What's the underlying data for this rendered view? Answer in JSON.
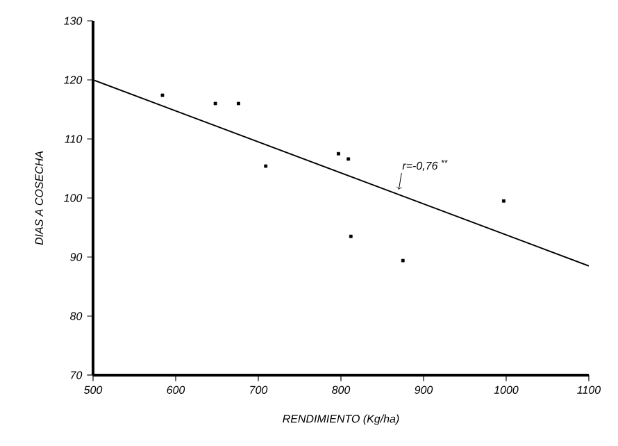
{
  "chart_data": {
    "type": "scatter",
    "xlabel": "RENDIMIENTO (Kg/ha)",
    "ylabel": "DIAS A COSECHA",
    "xlim": [
      500,
      1100
    ],
    "xticks": [
      500,
      600,
      700,
      800,
      900,
      1000,
      1100
    ],
    "ylim": [
      70,
      130
    ],
    "yticks": [
      70,
      80,
      90,
      100,
      110,
      120,
      130
    ],
    "grid": false,
    "series": [
      {
        "marker": "square",
        "color": "#000000",
        "x": [
          584,
          648,
          676,
          709,
          797,
          809,
          812,
          875,
          997
        ],
        "values": [
          117.4,
          116,
          116,
          105.4,
          107.5,
          106.6,
          93.5,
          89.4,
          99.5
        ]
      },
      {
        "type": "line",
        "color": "#000000",
        "x": [
          500,
          1100
        ],
        "values": [
          120,
          88.5
        ]
      }
    ],
    "annotations": [
      {
        "text": "r=-0,76 $^{**}$",
        "x": 870,
        "y": 101.4
      }
    ]
  }
}
